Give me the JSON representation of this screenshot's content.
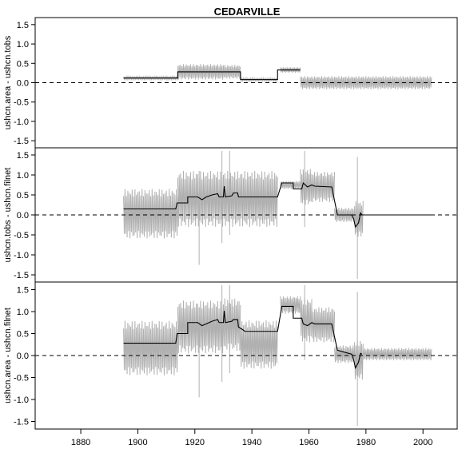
{
  "title": "CEDARVILLE",
  "chart_data": [
    {
      "type": "line",
      "panel": 1,
      "ylabel": "ushcn.area - ushcn.tobs",
      "ylim": [
        -1.6,
        1.6
      ],
      "yticks": [
        -1.5,
        -1.0,
        -0.5,
        0.0,
        0.5,
        1.0,
        1.5
      ],
      "reference_line": 0.0,
      "series": [
        {
          "role": "monthly (gray)",
          "color": "#b0b0b0",
          "bands": [
            {
              "x": [
                1895,
                1914
              ],
              "center": 0.12,
              "amp": 0.04
            },
            {
              "x": [
                1914,
                1930
              ],
              "center": 0.28,
              "amp": 0.2
            },
            {
              "x": [
                1930,
                1936
              ],
              "center": 0.28,
              "amp": 0.18
            },
            {
              "x": [
                1936,
                1949
              ],
              "center": 0.08,
              "amp": 0.04
            },
            {
              "x": [
                1950,
                1957
              ],
              "center": 0.33,
              "amp": 0.07
            },
            {
              "x": [
                1957,
                2003
              ],
              "center": 0.0,
              "amp": 0.17
            }
          ]
        },
        {
          "role": "annual (black)",
          "color": "#000000",
          "points": [
            [
              1895,
              0.12
            ],
            [
              1914,
              0.12
            ],
            [
              1914,
              0.28
            ],
            [
              1936,
              0.28
            ],
            [
              1936,
              0.08
            ],
            [
              1949,
              0.08
            ],
            [
              1949,
              0.33
            ],
            [
              1957,
              0.33
            ]
          ]
        }
      ]
    },
    {
      "type": "line",
      "panel": 2,
      "ylabel": "ushcn.tobs - ushcn.filnet",
      "ylim": [
        -1.6,
        1.6
      ],
      "yticks": [
        -1.5,
        -1.0,
        -0.5,
        0.0,
        0.5,
        1.0,
        1.5
      ],
      "reference_line": 0.0,
      "series": [
        {
          "role": "monthly (gray)",
          "color": "#b0b0b0",
          "bands": [
            {
              "x": [
                1895,
                1914
              ],
              "center": 0.03,
              "amp": 0.62
            },
            {
              "x": [
                1914,
                1949
              ],
              "center": 0.4,
              "amp": 0.7
            },
            {
              "x": [
                1950,
                1957
              ],
              "center": 0.75,
              "amp": 0.1
            },
            {
              "x": [
                1957,
                1961
              ],
              "center": 0.7,
              "amp": 0.45
            },
            {
              "x": [
                1961,
                1969
              ],
              "center": 0.7,
              "amp": 0.38
            },
            {
              "x": [
                1969,
                1976
              ],
              "center": 0.0,
              "amp": 0.18
            },
            {
              "x": [
                1976,
                1979
              ],
              "center": -0.1,
              "amp": 0.45
            }
          ],
          "spikes": [
            {
              "x": 1921.5,
              "y0": -1.25,
              "y1": 1.1
            },
            {
              "x": 1929.5,
              "y0": -0.7,
              "y1": 1.6
            },
            {
              "x": 1932.2,
              "y0": -0.5,
              "y1": 1.6
            },
            {
              "x": 1958.5,
              "y0": -0.3,
              "y1": 1.6
            },
            {
              "x": 1977.0,
              "y0": -1.6,
              "y1": 1.45
            }
          ]
        },
        {
          "role": "annual (black)",
          "color": "#000000",
          "points": [
            [
              1895,
              0.15
            ],
            [
              1913.3,
              0.15
            ],
            [
              1913.8,
              0.3
            ],
            [
              1917.5,
              0.3
            ],
            [
              1917.5,
              0.45
            ],
            [
              1921,
              0.45
            ],
            [
              1922.5,
              0.38
            ],
            [
              1924,
              0.45
            ],
            [
              1926,
              0.5
            ],
            [
              1928,
              0.53
            ],
            [
              1928.5,
              0.45
            ],
            [
              1930,
              0.45
            ],
            [
              1930.3,
              0.72
            ],
            [
              1930.7,
              0.45
            ],
            [
              1933,
              0.48
            ],
            [
              1933.5,
              0.55
            ],
            [
              1935,
              0.55
            ],
            [
              1935.3,
              0.45
            ],
            [
              1949,
              0.45
            ],
            [
              1950.5,
              0.8
            ],
            [
              1954.5,
              0.8
            ],
            [
              1954.5,
              0.65
            ],
            [
              1957.5,
              0.65
            ],
            [
              1958,
              0.8
            ],
            [
              1959.5,
              0.7
            ],
            [
              1961,
              0.75
            ],
            [
              1962,
              0.72
            ],
            [
              1968,
              0.7
            ],
            [
              1970,
              0.0
            ],
            [
              1975,
              0.0
            ],
            [
              1975.7,
              -0.1
            ],
            [
              1976.3,
              -0.3
            ],
            [
              1977.4,
              -0.2
            ],
            [
              1978.1,
              0.05
            ],
            [
              1978.6,
              0.0
            ],
            [
              2003,
              0.0
            ]
          ]
        }
      ]
    },
    {
      "type": "line",
      "panel": 3,
      "ylabel": "ushcn.area - ushcn.filnet",
      "ylim": [
        -1.6,
        1.6
      ],
      "yticks": [
        -1.5,
        -1.0,
        -0.5,
        0.0,
        0.5,
        1.0,
        1.5
      ],
      "reference_line": 0.0,
      "xlim": [
        1864,
        2012
      ],
      "xticks": [
        1880,
        1900,
        1920,
        1940,
        1960,
        1980,
        2000
      ],
      "series": [
        {
          "role": "monthly (gray)",
          "color": "#b0b0b0",
          "bands": [
            {
              "x": [
                1895,
                1914
              ],
              "center": 0.17,
              "amp": 0.62
            },
            {
              "x": [
                1914,
                1930
              ],
              "center": 0.65,
              "amp": 0.6
            },
            {
              "x": [
                1930,
                1936
              ],
              "center": 0.7,
              "amp": 0.6
            },
            {
              "x": [
                1936,
                1949
              ],
              "center": 0.25,
              "amp": 0.55
            },
            {
              "x": [
                1950,
                1957
              ],
              "center": 1.15,
              "amp": 0.2
            },
            {
              "x": [
                1957,
                1961
              ],
              "center": 0.8,
              "amp": 0.5
            },
            {
              "x": [
                1961,
                1969
              ],
              "center": 0.7,
              "amp": 0.4
            },
            {
              "x": [
                1969,
                1976
              ],
              "center": 0.03,
              "amp": 0.2
            },
            {
              "x": [
                1976,
                1979
              ],
              "center": -0.1,
              "amp": 0.45
            },
            {
              "x": [
                1979,
                2003
              ],
              "center": 0.03,
              "amp": 0.14
            }
          ],
          "spikes": [
            {
              "x": 1921.5,
              "y0": -0.95,
              "y1": 1.1
            },
            {
              "x": 1929.5,
              "y0": -0.6,
              "y1": 1.6
            },
            {
              "x": 1932.2,
              "y0": -0.4,
              "y1": 1.6
            },
            {
              "x": 1958.5,
              "y0": -0.1,
              "y1": 1.6
            },
            {
              "x": 1977.0,
              "y0": -1.6,
              "y1": 1.45
            }
          ]
        },
        {
          "role": "annual (black)",
          "color": "#000000",
          "points": [
            [
              1895,
              0.28
            ],
            [
              1913.3,
              0.28
            ],
            [
              1913.8,
              0.5
            ],
            [
              1917.5,
              0.5
            ],
            [
              1917.5,
              0.75
            ],
            [
              1921,
              0.75
            ],
            [
              1922.5,
              0.68
            ],
            [
              1924,
              0.72
            ],
            [
              1926,
              0.78
            ],
            [
              1928,
              0.82
            ],
            [
              1928.5,
              0.75
            ],
            [
              1930,
              0.75
            ],
            [
              1930.3,
              1.02
            ],
            [
              1930.7,
              0.75
            ],
            [
              1933,
              0.78
            ],
            [
              1933.5,
              0.82
            ],
            [
              1935,
              0.82
            ],
            [
              1935.3,
              0.65
            ],
            [
              1937,
              0.58
            ],
            [
              1937.5,
              0.55
            ],
            [
              1949,
              0.55
            ],
            [
              1950.5,
              1.12
            ],
            [
              1954.5,
              1.12
            ],
            [
              1954.5,
              0.85
            ],
            [
              1957.5,
              0.85
            ],
            [
              1958,
              0.72
            ],
            [
              1959.5,
              0.68
            ],
            [
              1961,
              0.75
            ],
            [
              1962,
              0.72
            ],
            [
              1968,
              0.72
            ],
            [
              1970,
              0.12
            ],
            [
              1975,
              0.03
            ],
            [
              1975.7,
              -0.1
            ],
            [
              1976.3,
              -0.28
            ],
            [
              1977.4,
              -0.15
            ],
            [
              1978.1,
              0.05
            ],
            [
              1978.6,
              0.03
            ]
          ]
        }
      ]
    }
  ]
}
